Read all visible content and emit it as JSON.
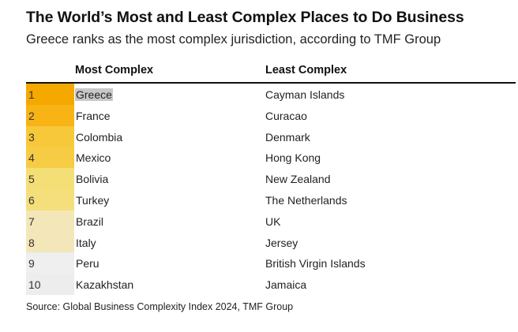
{
  "header": {
    "title": "The World’s Most and Least Complex Places to Do Business",
    "subtitle": "Greece ranks as the most complex jurisdiction, according to TMF Group"
  },
  "chart_data": {
    "type": "table",
    "columns": [
      "",
      "Most Complex",
      "Least Complex"
    ],
    "rows": [
      {
        "rank": "1",
        "most": "Greece",
        "least": "Cayman Islands",
        "color": "#f5a800"
      },
      {
        "rank": "2",
        "most": "France",
        "least": "Curacao",
        "color": "#f8b314"
      },
      {
        "rank": "3",
        "most": "Colombia",
        "least": "Denmark",
        "color": "#f7c839"
      },
      {
        "rank": "4",
        "most": "Mexico",
        "least": "Hong Kong",
        "color": "#f7cc45"
      },
      {
        "rank": "5",
        "most": "Bolivia",
        "least": "New Zealand",
        "color": "#f4de76"
      },
      {
        "rank": "6",
        "most": "Turkey",
        "least": "The Netherlands",
        "color": "#f4df7c"
      },
      {
        "rank": "7",
        "most": "Brazil",
        "least": "UK",
        "color": "#f3e7b9"
      },
      {
        "rank": "8",
        "most": "Italy",
        "least": "Jersey",
        "color": "#f3e6b8"
      },
      {
        "rank": "9",
        "most": "Peru",
        "least": "British Virgin Islands",
        "color": "#efefef"
      },
      {
        "rank": "10",
        "most": "Kazakhstan",
        "least": "Jamaica",
        "color": "#ededed"
      }
    ],
    "highlight_color": "#c8c8c8"
  },
  "footer": {
    "source": "Source: Global Business Complexity Index 2024, TMF Group"
  }
}
